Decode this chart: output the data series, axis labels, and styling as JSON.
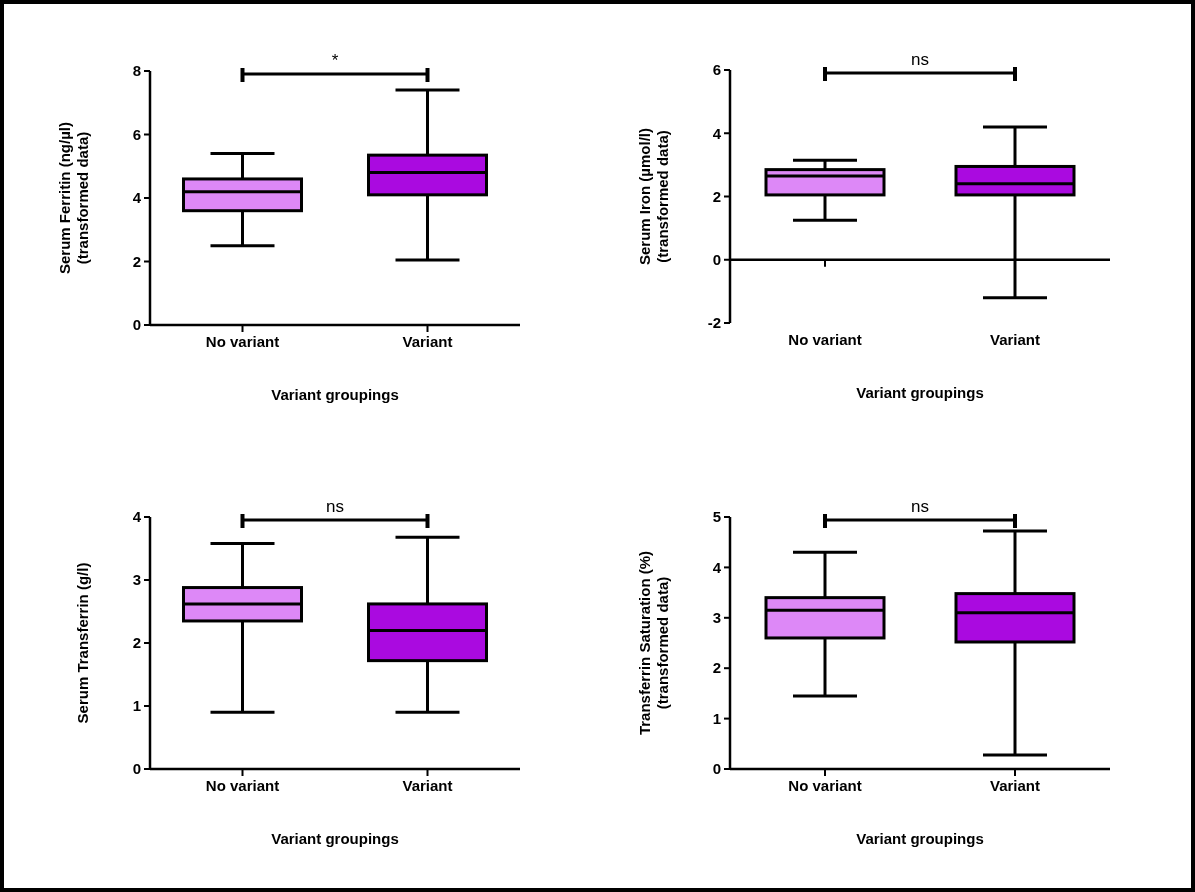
{
  "chart_data": [
    {
      "type": "box",
      "categories": [
        "No variant",
        "Variant"
      ],
      "xlabel": "Variant groupings",
      "ylabel": "Serum Ferritin (ng/µl)\n(transformed data)",
      "ylim": [
        0,
        8
      ],
      "yticks": [
        0,
        2,
        4,
        6,
        8
      ],
      "colors": [
        "#dd88f7",
        "#aa0ae0"
      ],
      "boxes": [
        {
          "low": 2.5,
          "q1": 3.6,
          "median": 4.2,
          "q3": 4.6,
          "high": 5.4
        },
        {
          "low": 2.05,
          "q1": 4.1,
          "median": 4.8,
          "q3": 5.35,
          "high": 7.4
        }
      ],
      "annotations": [
        "*"
      ]
    },
    {
      "type": "box",
      "categories": [
        "No variant",
        "Variant"
      ],
      "xlabel": "Variant groupings",
      "ylabel": "Serum Iron (µmol/l)\n(transformed data)",
      "ylim": [
        -2,
        6
      ],
      "yticks": [
        -2,
        0,
        2,
        4,
        6
      ],
      "colors": [
        "#dd88f7",
        "#aa0ae0"
      ],
      "boxes": [
        {
          "low": 1.25,
          "q1": 2.05,
          "median": 2.65,
          "q3": 2.85,
          "high": 3.15
        },
        {
          "low": -1.2,
          "q1": 2.05,
          "median": 2.4,
          "q3": 2.95,
          "high": 4.2
        }
      ],
      "annotations": [
        "ns"
      ]
    },
    {
      "type": "box",
      "categories": [
        "No variant",
        "Variant"
      ],
      "xlabel": "Variant groupings",
      "ylabel": "Serum Transferrin (g/l)",
      "ylim": [
        0,
        4
      ],
      "yticks": [
        0,
        1,
        2,
        3,
        4
      ],
      "colors": [
        "#dd88f7",
        "#aa0ae0"
      ],
      "boxes": [
        {
          "low": 0.9,
          "q1": 2.35,
          "median": 2.62,
          "q3": 2.88,
          "high": 3.58
        },
        {
          "low": 0.9,
          "q1": 1.72,
          "median": 2.2,
          "q3": 2.62,
          "high": 3.68
        }
      ],
      "annotations": [
        "ns"
      ]
    },
    {
      "type": "box",
      "categories": [
        "No variant",
        "Variant"
      ],
      "xlabel": "Variant groupings",
      "ylabel": "Transferrin Saturation (%)\n(transformed data)",
      "ylim": [
        0,
        5
      ],
      "yticks": [
        0,
        1,
        2,
        3,
        4,
        5
      ],
      "colors": [
        "#dd88f7",
        "#aa0ae0"
      ],
      "boxes": [
        {
          "low": 1.45,
          "q1": 2.6,
          "median": 3.15,
          "q3": 3.4,
          "high": 4.3
        },
        {
          "low": 0.28,
          "q1": 2.52,
          "median": 3.1,
          "q3": 3.48,
          "high": 4.72
        }
      ],
      "annotations": [
        "ns"
      ]
    }
  ]
}
